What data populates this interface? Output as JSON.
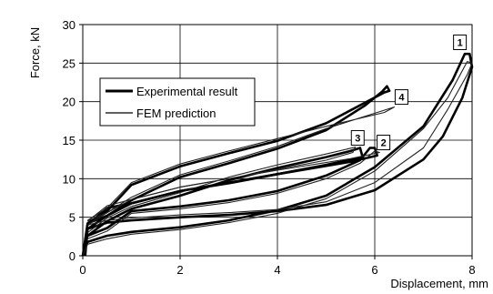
{
  "chart_data": {
    "type": "line",
    "xlabel": "Displacement, mm",
    "ylabel": "Force, kN",
    "xlim": [
      0,
      8
    ],
    "ylim": [
      0,
      30
    ],
    "x_ticks": [
      "0",
      "2",
      "4",
      "6",
      "8"
    ],
    "y_ticks": [
      "0",
      "5",
      "10",
      "15",
      "20",
      "25",
      "30"
    ],
    "grid": true,
    "legend_position": "upper-left",
    "legend": [
      {
        "name": "Experimental result",
        "style": "thick"
      },
      {
        "name": "FEM prediction",
        "style": "thin"
      }
    ],
    "annotations": [
      {
        "label": "1",
        "x": 7.75,
        "y": 27.7
      },
      {
        "label": "2",
        "x": 6.18,
        "y": 14.7
      },
      {
        "label": "3",
        "x": 5.65,
        "y": 15.3
      },
      {
        "label": "4",
        "x": 6.55,
        "y": 20.6
      }
    ],
    "series": [
      {
        "name": "Experimental result",
        "case": "1",
        "points": [
          [
            0,
            0
          ],
          [
            0.1,
            1.8
          ],
          [
            0.5,
            2.6
          ],
          [
            1,
            3.1
          ],
          [
            2,
            3.7
          ],
          [
            3,
            4.6
          ],
          [
            4,
            5.9
          ],
          [
            5,
            7.8
          ],
          [
            6,
            11.5
          ],
          [
            7,
            16.8
          ],
          [
            7.6,
            22.8
          ],
          [
            7.85,
            26.2
          ],
          [
            7.95,
            26.2
          ],
          [
            8,
            24.5
          ],
          [
            7.8,
            20.5
          ],
          [
            7.4,
            15.5
          ],
          [
            7,
            12.5
          ],
          [
            6,
            8.5
          ],
          [
            5,
            6.6
          ],
          [
            4,
            5.8
          ],
          [
            3,
            5.3
          ],
          [
            2,
            5
          ],
          [
            1,
            4.6
          ],
          [
            0.5,
            4.3
          ],
          [
            0.1,
            3.5
          ],
          [
            0.05,
            0
          ]
        ]
      },
      {
        "name": "Experimental result",
        "case": "2",
        "points": [
          [
            0,
            0
          ],
          [
            0.1,
            2.6
          ],
          [
            0.5,
            3.6
          ],
          [
            1,
            5.8
          ],
          [
            2,
            6.4
          ],
          [
            3,
            7.2
          ],
          [
            4,
            8.4
          ],
          [
            5,
            10.4
          ],
          [
            5.7,
            12.4
          ],
          [
            5.9,
            14
          ],
          [
            6,
            14
          ],
          [
            6.05,
            13
          ],
          [
            5.5,
            12.2
          ],
          [
            4,
            10.6
          ],
          [
            2,
            8.4
          ],
          [
            1,
            6.8
          ],
          [
            0.5,
            6.2
          ],
          [
            0.1,
            4
          ]
        ]
      },
      {
        "name": "Experimental result",
        "case": "3",
        "points": [
          [
            0.1,
            2.6
          ],
          [
            0.5,
            4.5
          ],
          [
            1,
            6.1
          ],
          [
            2,
            7.8
          ],
          [
            3,
            9.8
          ],
          [
            4,
            11.4
          ],
          [
            5,
            12.8
          ],
          [
            5.5,
            13.6
          ],
          [
            5.7,
            14
          ],
          [
            5.75,
            12.8
          ],
          [
            5,
            11.8
          ],
          [
            4,
            10.6
          ],
          [
            3,
            9.4
          ],
          [
            2,
            8.4
          ],
          [
            1,
            6.8
          ],
          [
            0.5,
            5.2
          ],
          [
            0.1,
            3.5
          ]
        ]
      },
      {
        "name": "Experimental result",
        "case": "4",
        "points": [
          [
            0,
            0
          ],
          [
            0.1,
            4.2
          ],
          [
            0.5,
            5.2
          ],
          [
            1,
            7.2
          ],
          [
            2,
            10.2
          ],
          [
            3,
            12
          ],
          [
            4,
            13.9
          ],
          [
            5,
            16.3
          ],
          [
            5.8,
            19.5
          ],
          [
            6.15,
            21.3
          ],
          [
            6.25,
            22
          ],
          [
            6.3,
            21.4
          ],
          [
            6.2,
            21.2
          ],
          [
            5,
            17.2
          ],
          [
            4,
            14.9
          ],
          [
            3,
            13.3
          ],
          [
            2,
            11.6
          ],
          [
            1,
            9.2
          ],
          [
            0.5,
            5.8
          ],
          [
            0.1,
            4.2
          ]
        ]
      },
      {
        "name": "FEM prediction",
        "case": "1",
        "points": [
          [
            0,
            0
          ],
          [
            0.1,
            1.5
          ],
          [
            0.5,
            2.2
          ],
          [
            1,
            2.8
          ],
          [
            2,
            3.4
          ],
          [
            3,
            4.3
          ],
          [
            4,
            5.5
          ],
          [
            5,
            7.4
          ],
          [
            6,
            11
          ],
          [
            7,
            16.5
          ],
          [
            7.5,
            20.5
          ],
          [
            7.9,
            25.2
          ],
          [
            8,
            25
          ],
          [
            7.9,
            23.5
          ],
          [
            7.5,
            19
          ],
          [
            7,
            14
          ],
          [
            6,
            9.5
          ],
          [
            5,
            7
          ],
          [
            4,
            6
          ],
          [
            3,
            5.6
          ],
          [
            2,
            5.3
          ],
          [
            1,
            4.9
          ],
          [
            0.5,
            4.6
          ],
          [
            0.1,
            4
          ]
        ]
      },
      {
        "name": "FEM prediction",
        "case": "2",
        "points": [
          [
            0.1,
            2.2
          ],
          [
            0.5,
            3.2
          ],
          [
            1,
            5.5
          ],
          [
            2,
            6.1
          ],
          [
            3,
            6.9
          ],
          [
            4,
            8.1
          ],
          [
            5,
            10
          ],
          [
            5.7,
            12
          ],
          [
            6,
            13.6
          ],
          [
            6.1,
            13.4
          ],
          [
            5.5,
            12.6
          ],
          [
            4,
            11.1
          ],
          [
            2,
            8.9
          ],
          [
            1,
            7.3
          ],
          [
            0.5,
            6.5
          ],
          [
            0.1,
            4.5
          ]
        ]
      },
      {
        "name": "FEM prediction",
        "case": "3",
        "points": [
          [
            0.1,
            3
          ],
          [
            0.5,
            4.9
          ],
          [
            1,
            6.4
          ],
          [
            2,
            8.2
          ],
          [
            3,
            10.2
          ],
          [
            4,
            11.8
          ],
          [
            5,
            13.2
          ],
          [
            5.6,
            14.1
          ],
          [
            5.55,
            13.4
          ],
          [
            5,
            12.4
          ],
          [
            4,
            11.2
          ],
          [
            3,
            10
          ],
          [
            2,
            8.9
          ],
          [
            1,
            7.3
          ],
          [
            0.5,
            5.6
          ],
          [
            0.1,
            4
          ]
        ]
      },
      {
        "name": "FEM prediction",
        "case": "4",
        "points": [
          [
            0.1,
            4.5
          ],
          [
            0.5,
            5.6
          ],
          [
            1,
            7.6
          ],
          [
            2,
            10.5
          ],
          [
            3,
            12.3
          ],
          [
            4,
            14.2
          ],
          [
            5,
            16.5
          ],
          [
            6,
            18.5
          ],
          [
            6.4,
            19.3
          ],
          [
            6.2,
            18.6
          ],
          [
            5,
            16.8
          ],
          [
            4,
            15.2
          ],
          [
            3,
            13.6
          ],
          [
            2,
            11.9
          ],
          [
            1,
            9.5
          ],
          [
            0.5,
            6.2
          ],
          [
            0.1,
            4.6
          ]
        ]
      }
    ]
  }
}
